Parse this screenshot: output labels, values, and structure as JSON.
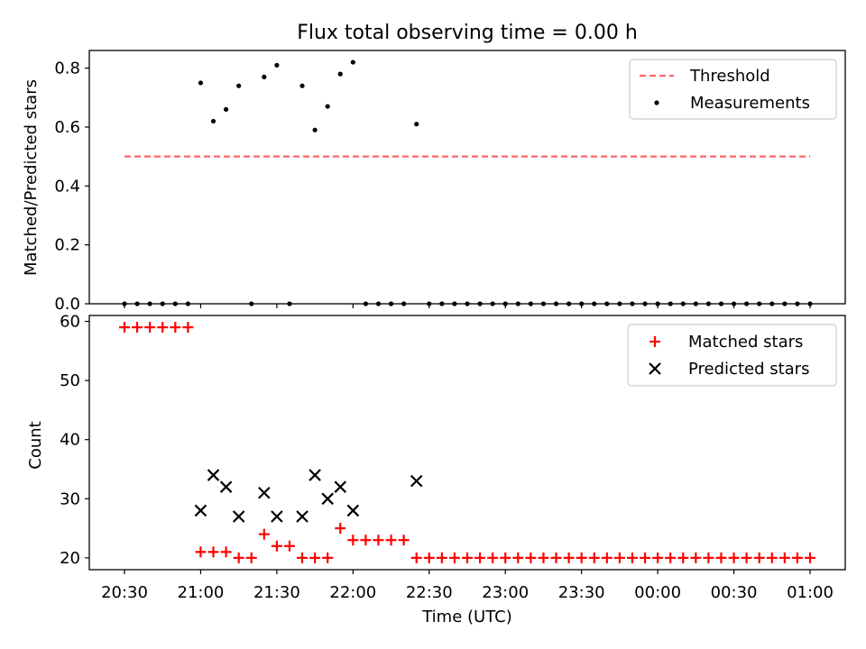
{
  "chart_data": [
    {
      "type": "scatter",
      "title": "Flux total observing time = 0.00 h",
      "xlabel": "",
      "ylabel": "Matched/Predicted stars",
      "ylim": [
        0,
        0.86
      ],
      "yticks": [
        "0.0",
        "0.2",
        "0.4",
        "0.6",
        "0.8"
      ],
      "legend": {
        "location": "upper right",
        "entries": [
          "Threshold",
          "Measurements"
        ]
      },
      "threshold": {
        "name": "Threshold",
        "value": 0.5,
        "x_start": "20:30",
        "x_end": "01:00",
        "color": "#ff6666",
        "style": "dashed"
      },
      "series": [
        {
          "name": "Measurements",
          "marker": "dot",
          "color": "#000000",
          "x": [
            "20:30",
            "20:35",
            "20:40",
            "20:45",
            "20:50",
            "20:55",
            "21:00",
            "21:05",
            "21:10",
            "21:15",
            "21:20",
            "21:25",
            "21:30",
            "21:35",
            "21:40",
            "21:45",
            "21:50",
            "21:55",
            "22:00",
            "22:05",
            "22:10",
            "22:15",
            "22:20",
            "22:25",
            "22:30",
            "22:35",
            "22:40",
            "22:45",
            "22:50",
            "22:55",
            "23:00",
            "23:05",
            "23:10",
            "23:15",
            "23:20",
            "23:25",
            "23:30",
            "23:35",
            "23:40",
            "23:45",
            "23:50",
            "23:55",
            "00:00",
            "00:05",
            "00:10",
            "00:15",
            "00:20",
            "00:25",
            "00:30",
            "00:35",
            "00:40",
            "00:45",
            "00:50",
            "00:55",
            "01:00"
          ],
          "y": [
            0,
            0,
            0,
            0,
            0,
            0,
            0.75,
            0.62,
            0.66,
            0.74,
            0,
            0.77,
            0.81,
            0,
            0.74,
            0.59,
            0.67,
            0.78,
            0.82,
            0,
            0,
            0,
            0,
            0.61,
            0,
            0,
            0,
            0,
            0,
            0,
            0,
            0,
            0,
            0,
            0,
            0,
            0,
            0,
            0,
            0,
            0,
            0,
            0,
            0,
            0,
            0,
            0,
            0,
            0,
            0,
            0,
            0,
            0,
            0,
            0
          ]
        }
      ]
    },
    {
      "type": "scatter",
      "title": "",
      "xlabel": "Time (UTC)",
      "ylabel": "Count",
      "ylim": [
        18,
        61
      ],
      "yticks": [
        "20",
        "30",
        "40",
        "50",
        "60"
      ],
      "xticks": [
        "20:30",
        "21:00",
        "21:30",
        "22:00",
        "22:30",
        "23:00",
        "23:30",
        "00:00",
        "00:30",
        "01:00"
      ],
      "legend": {
        "location": "upper right",
        "entries": [
          "Matched stars",
          "Predicted stars"
        ]
      },
      "series": [
        {
          "name": "Matched stars",
          "marker": "plus",
          "color": "#ff0000",
          "x": [
            "20:30",
            "20:35",
            "20:40",
            "20:45",
            "20:50",
            "20:55",
            "21:00",
            "21:05",
            "21:10",
            "21:15",
            "21:20",
            "21:25",
            "21:30",
            "21:35",
            "21:40",
            "21:45",
            "21:50",
            "21:55",
            "22:00",
            "22:05",
            "22:10",
            "22:15",
            "22:20",
            "22:25",
            "22:30",
            "22:35",
            "22:40",
            "22:45",
            "22:50",
            "22:55",
            "23:00",
            "23:05",
            "23:10",
            "23:15",
            "23:20",
            "23:25",
            "23:30",
            "23:35",
            "23:40",
            "23:45",
            "23:50",
            "23:55",
            "00:00",
            "00:05",
            "00:10",
            "00:15",
            "00:20",
            "00:25",
            "00:30",
            "00:35",
            "00:40",
            "00:45",
            "00:50",
            "00:55",
            "01:00"
          ],
          "y": [
            59,
            59,
            59,
            59,
            59,
            59,
            21,
            21,
            21,
            20,
            20,
            24,
            22,
            22,
            20,
            20,
            20,
            25,
            23,
            23,
            23,
            23,
            23,
            20,
            20,
            20,
            20,
            20,
            20,
            20,
            20,
            20,
            20,
            20,
            20,
            20,
            20,
            20,
            20,
            20,
            20,
            20,
            20,
            20,
            20,
            20,
            20,
            20,
            20,
            20,
            20,
            20,
            20,
            20,
            20
          ]
        },
        {
          "name": "Predicted stars",
          "marker": "x",
          "color": "#000000",
          "x": [
            "21:00",
            "21:05",
            "21:10",
            "21:15",
            "21:25",
            "21:30",
            "21:40",
            "21:45",
            "21:50",
            "21:55",
            "22:00",
            "22:25"
          ],
          "y": [
            28,
            34,
            32,
            27,
            31,
            27,
            27,
            34,
            30,
            32,
            28,
            33
          ]
        }
      ]
    }
  ]
}
